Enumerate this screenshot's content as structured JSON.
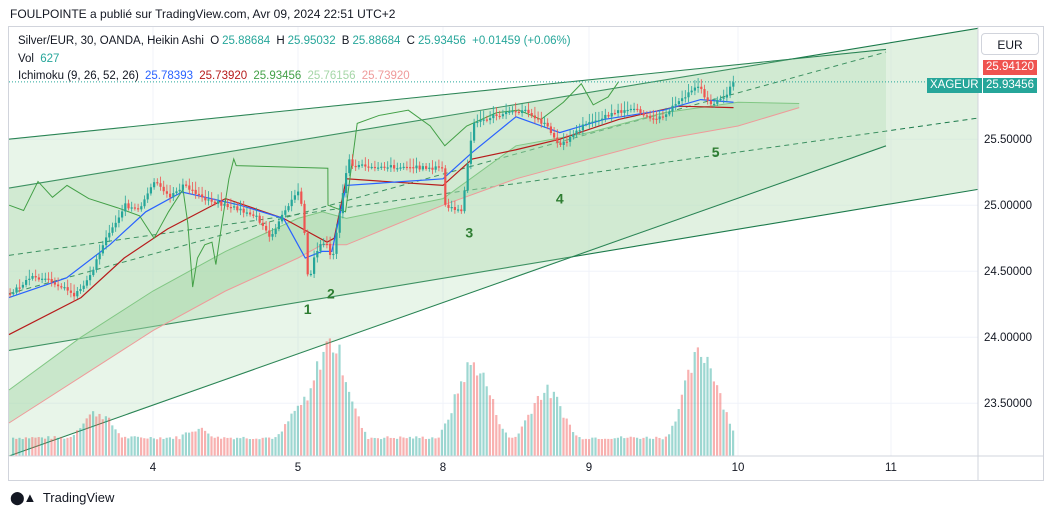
{
  "header": {
    "attribution": "FOULPOINTE a publié sur TradingView.com, Avr 09, 2024 22:51 UTC+2"
  },
  "legend": {
    "symbol": "Silver/EUR, 30, OANDA, Heikin Ashi",
    "o_label": "O",
    "o_value": "25.88684",
    "h_label": "H",
    "h_value": "25.95032",
    "b_label": "B",
    "b_value": "25.88684",
    "c_label": "C",
    "c_value": "25.93456",
    "change": "+0.01459 (+0.06%)",
    "vol_label": "Vol",
    "vol_value": "627",
    "ichimoku_label": "Ichimoku (9, 26, 52, 26)",
    "ichimoku_values": [
      "25.78393",
      "25.73920",
      "25.93456",
      "25.76156",
      "25.73920"
    ]
  },
  "currency_button": "EUR",
  "price_tags": {
    "last_high": "25.94120",
    "symbol": "XAGEUR",
    "last": "25.93456"
  },
  "footer": {
    "brand": "TradingView"
  },
  "colors": {
    "up": "#26a69a",
    "down": "#ef5350",
    "tenkan": "#2962ff",
    "kijun": "#b71c1c",
    "chikou": "#43a047",
    "cloud": "#a5d6a7",
    "channel": "#1b7a4b"
  },
  "chart_data": {
    "type": "candlestick",
    "title": "Silver/EUR, 30, OANDA, Heikin Ashi",
    "x_ticks": [
      "4",
      "5",
      "8",
      "9",
      "10",
      "11"
    ],
    "y_ticks": [
      "25.50000",
      "25.00000",
      "24.50000",
      "24.00000",
      "23.50000"
    ],
    "ylim": [
      23.1,
      26.35
    ],
    "grid": true,
    "wave_labels": [
      "1",
      "2",
      "3",
      "4",
      "5"
    ],
    "wave_points": [
      {
        "label": "1",
        "x": 5.2,
        "y": 24.28
      },
      {
        "label": "2",
        "x": 5.68,
        "y": 24.4
      },
      {
        "label": "3",
        "x": 8.18,
        "y": 24.86
      },
      {
        "label": "4",
        "x": 8.8,
        "y": 25.12
      },
      {
        "label": "5",
        "x": 9.85,
        "y": 25.47
      }
    ],
    "price_path": [
      [
        3.0,
        24.33
      ],
      [
        3.15,
        24.45
      ],
      [
        3.3,
        24.42
      ],
      [
        3.45,
        24.32
      ],
      [
        3.55,
        24.45
      ],
      [
        3.65,
        24.72
      ],
      [
        3.8,
        25.0
      ],
      [
        3.9,
        24.96
      ],
      [
        4.0,
        25.18
      ],
      [
        4.1,
        25.06
      ],
      [
        4.2,
        25.15
      ],
      [
        4.35,
        25.05
      ],
      [
        4.55,
        24.98
      ],
      [
        4.7,
        24.92
      ],
      [
        4.8,
        24.75
      ],
      [
        4.9,
        24.95
      ],
      [
        5.0,
        25.12
      ],
      [
        5.1,
        24.86
      ],
      [
        5.2,
        24.38
      ],
      [
        5.3,
        24.6
      ],
      [
        5.45,
        24.7
      ],
      [
        5.6,
        24.72
      ],
      [
        5.68,
        24.55
      ],
      [
        5.8,
        24.85
      ],
      [
        5.95,
        25.2
      ],
      [
        6.05,
        25.35
      ],
      [
        6.1,
        25.3
      ],
      [
        7.9,
        25.28
      ],
      [
        8.0,
        25.0
      ],
      [
        8.12,
        24.95
      ],
      [
        8.2,
        25.62
      ],
      [
        8.35,
        25.68
      ],
      [
        8.55,
        25.72
      ],
      [
        8.7,
        25.6
      ],
      [
        8.8,
        25.45
      ],
      [
        8.95,
        25.6
      ],
      [
        9.15,
        25.7
      ],
      [
        9.3,
        25.72
      ],
      [
        9.45,
        25.65
      ],
      [
        9.6,
        25.78
      ],
      [
        9.72,
        25.92
      ],
      [
        9.8,
        25.76
      ],
      [
        9.9,
        25.82
      ],
      [
        9.97,
        25.935
      ]
    ],
    "tenkan": [
      [
        3.0,
        24.3
      ],
      [
        3.4,
        24.45
      ],
      [
        3.7,
        24.7
      ],
      [
        3.95,
        24.95
      ],
      [
        4.2,
        25.1
      ],
      [
        4.6,
        25.0
      ],
      [
        4.9,
        24.9
      ],
      [
        5.15,
        24.6
      ],
      [
        5.5,
        24.65
      ],
      [
        5.7,
        24.65
      ],
      [
        6.0,
        25.15
      ],
      [
        8.0,
        25.2
      ],
      [
        8.2,
        25.4
      ],
      [
        8.5,
        25.67
      ],
      [
        8.8,
        25.55
      ],
      [
        9.1,
        25.65
      ],
      [
        9.5,
        25.72
      ],
      [
        9.75,
        25.8
      ],
      [
        9.97,
        25.78
      ]
    ],
    "kijun": [
      [
        3.0,
        24.02
      ],
      [
        3.5,
        24.3
      ],
      [
        3.8,
        24.6
      ],
      [
        4.1,
        24.82
      ],
      [
        4.5,
        25.05
      ],
      [
        4.9,
        24.9
      ],
      [
        5.2,
        24.8
      ],
      [
        5.6,
        24.72
      ],
      [
        5.75,
        24.75
      ],
      [
        6.0,
        25.2
      ],
      [
        8.0,
        25.15
      ],
      [
        8.2,
        25.35
      ],
      [
        8.5,
        25.42
      ],
      [
        8.8,
        25.5
      ],
      [
        9.2,
        25.65
      ],
      [
        9.6,
        25.75
      ],
      [
        9.97,
        25.739
      ]
    ],
    "senkou_a": [
      [
        3.0,
        23.6
      ],
      [
        3.5,
        24.0
      ],
      [
        4.0,
        24.35
      ],
      [
        4.5,
        24.65
      ],
      [
        5.0,
        24.9
      ],
      [
        5.5,
        24.95
      ],
      [
        6.0,
        24.9
      ],
      [
        8.0,
        25.05
      ],
      [
        8.5,
        25.45
      ],
      [
        9.0,
        25.55
      ],
      [
        9.5,
        25.7
      ],
      [
        10.0,
        25.78
      ],
      [
        10.4,
        25.77
      ]
    ],
    "senkou_b": [
      [
        3.0,
        23.35
      ],
      [
        3.5,
        23.7
      ],
      [
        4.0,
        24.05
      ],
      [
        4.5,
        24.35
      ],
      [
        5.0,
        24.6
      ],
      [
        5.5,
        24.7
      ],
      [
        6.0,
        24.7
      ],
      [
        8.0,
        25.0
      ],
      [
        8.5,
        25.2
      ],
      [
        9.0,
        25.35
      ],
      [
        9.5,
        25.5
      ],
      [
        10.0,
        25.6
      ],
      [
        10.4,
        25.739
      ]
    ],
    "volume_peaks": [
      {
        "x": 3.6,
        "v": 0.35
      },
      {
        "x": 4.3,
        "v": 0.2
      },
      {
        "x": 5.15,
        "v": 0.45
      },
      {
        "x": 5.65,
        "v": 1.0
      },
      {
        "x": 8.2,
        "v": 0.8
      },
      {
        "x": 8.7,
        "v": 0.55
      },
      {
        "x": 9.75,
        "v": 0.9
      }
    ]
  }
}
